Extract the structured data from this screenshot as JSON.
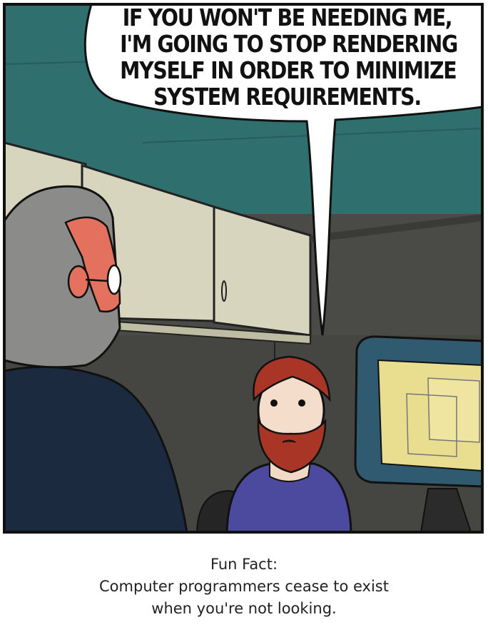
{
  "comic": {
    "speech_lines": [
      "If you won't be needing me,",
      "I'm going to stop rendering",
      "myself in order to minimize",
      "system requirements."
    ]
  },
  "caption": {
    "line1": "Fun Fact:",
    "line2": "Computer programmers cease to exist",
    "line3": "when you're not looking."
  },
  "colors": {
    "wall_teal": "#2f6f6e",
    "cabinet": "#d7d5bd",
    "cubicle_wall": "#4a4a47",
    "jacket": "#1c2a3f",
    "hair_gray": "#8b8b89",
    "skin_red": "#e4705e",
    "beard": "#a83525",
    "shirt": "#4b4a9e",
    "monitor_bezel": "#2f5a70",
    "screen": "#e9dd8f"
  }
}
